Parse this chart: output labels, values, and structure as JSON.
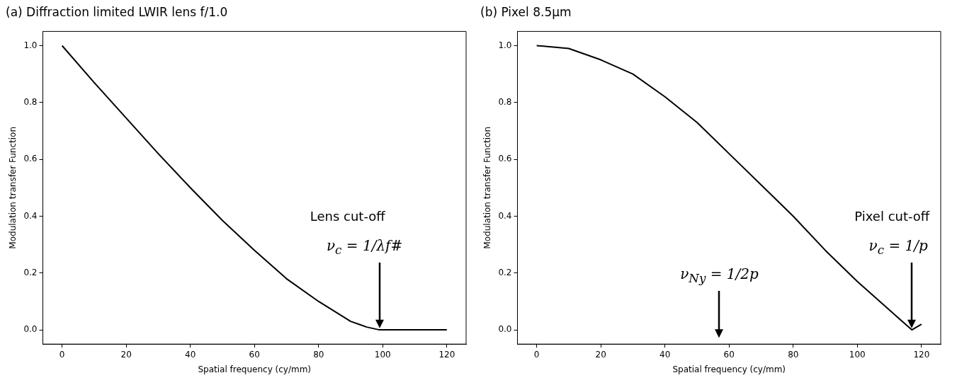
{
  "chart_data": [
    {
      "type": "line",
      "title": "(a) Diffraction limited LWIR lens f/1.0",
      "xlabel": "Spatial frequency (cy/mm)",
      "ylabel": "Modulation transfer Function",
      "x": [
        0,
        10,
        20,
        30,
        40,
        50,
        60,
        70,
        80,
        90,
        95,
        99,
        120
      ],
      "series": [
        {
          "color": "#000000",
          "values": [
            1.0,
            0.87,
            0.745,
            0.62,
            0.5,
            0.385,
            0.28,
            0.18,
            0.1,
            0.03,
            0.01,
            0,
            0
          ]
        }
      ],
      "xlim": [
        -6,
        126
      ],
      "ylim": [
        -0.05,
        1.05
      ],
      "xticks": [
        0,
        20,
        40,
        60,
        80,
        100,
        120
      ],
      "yticks": [
        {
          "value": 0,
          "label": "0.0"
        },
        {
          "value": 0.2,
          "label": "0.2"
        },
        {
          "value": 0.4,
          "label": "0.4"
        },
        {
          "value": 0.6,
          "label": "0.6"
        },
        {
          "value": 0.8,
          "label": "0.8"
        },
        {
          "value": 1,
          "label": "1.0"
        }
      ],
      "grid": false,
      "legend": false,
      "marker": "none",
      "line_style": "solid",
      "annotations": [
        "Lens cut-off",
        "ν$_{c}$ = 1/λf#"
      ]
    },
    {
      "type": "line",
      "title": "(b) Pixel 8.5μm",
      "xlabel": "Spatial frequency (cy/mm)",
      "ylabel": "Modulation transfer Function",
      "x": [
        0,
        10,
        20,
        30,
        40,
        50,
        60,
        70,
        80,
        90,
        100,
        110,
        117,
        120
      ],
      "series": [
        {
          "color": "#000000",
          "values": [
            1.0,
            0.99,
            0.95,
            0.9,
            0.82,
            0.73,
            0.62,
            0.51,
            0.4,
            0.28,
            0.17,
            0.07,
            0,
            0.02
          ]
        }
      ],
      "xlim": [
        -6,
        126
      ],
      "ylim": [
        -0.05,
        1.05
      ],
      "xticks": [
        0,
        20,
        40,
        60,
        80,
        100,
        120
      ],
      "yticks": [
        {
          "value": 0,
          "label": "0.0"
        },
        {
          "value": 0.2,
          "label": "0.2"
        },
        {
          "value": 0.4,
          "label": "0.4"
        },
        {
          "value": 0.6,
          "label": "0.6"
        },
        {
          "value": 0.8,
          "label": "0.8"
        },
        {
          "value": 1,
          "label": "1.0"
        }
      ],
      "grid": false,
      "legend": false,
      "marker": "none",
      "line_style": "solid",
      "annotations": [
        "ν$_{Ny}$ = 1/2p",
        "Pixel cut-off",
        "ν$_{c}$ = 1/p"
      ]
    }
  ]
}
